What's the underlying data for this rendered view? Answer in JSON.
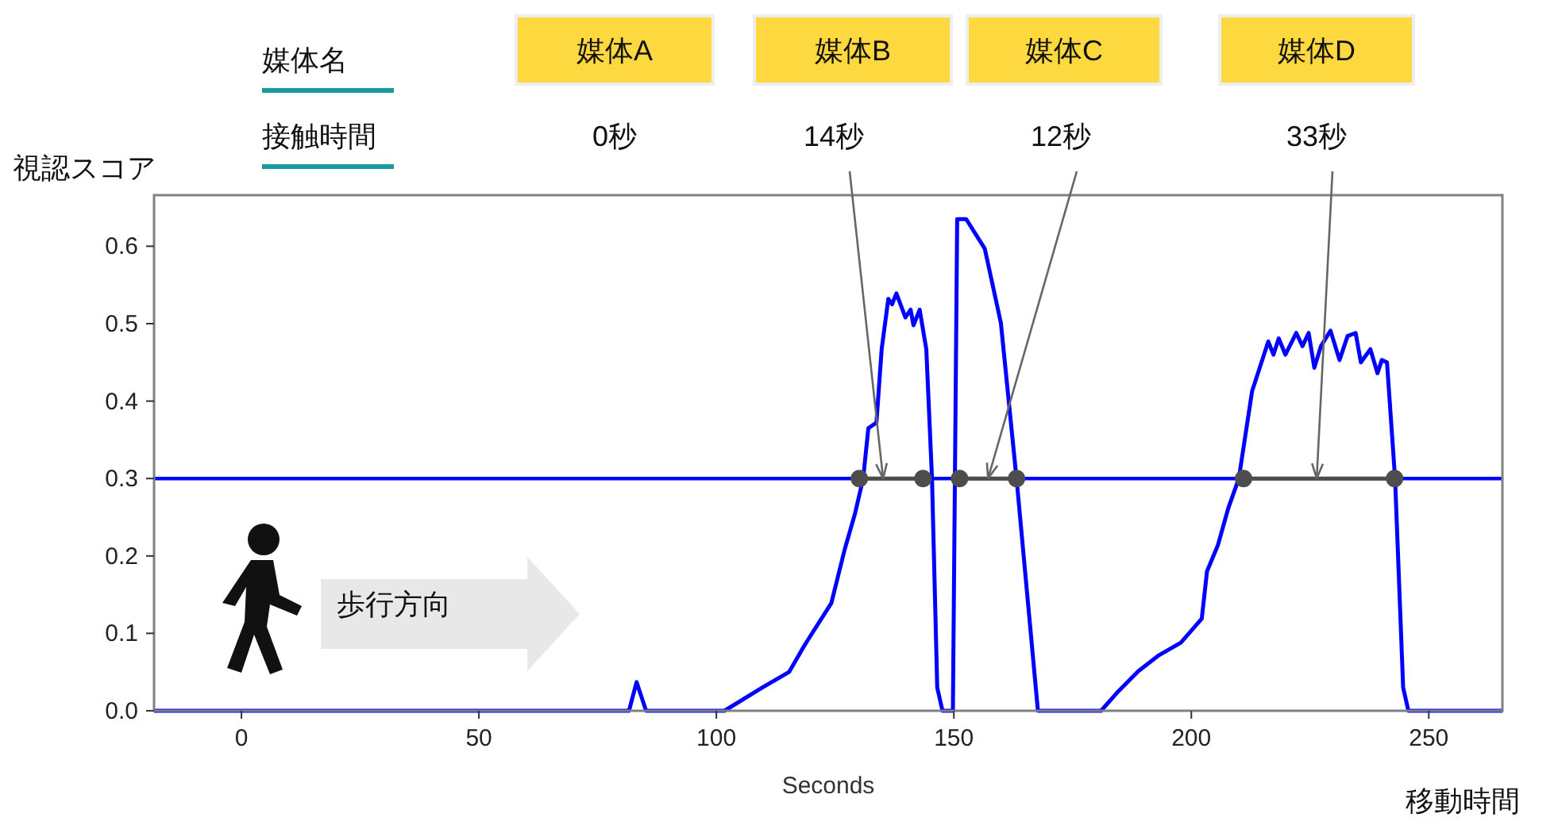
{
  "chart_data": {
    "type": "line",
    "xlabel": "Seconds",
    "ylabel": "視認スコア",
    "xlim": [
      -18.4,
      265.5
    ],
    "ylim": [
      0,
      0.666
    ],
    "xticks": [
      0,
      50,
      100,
      150,
      200,
      250
    ],
    "yticks": [
      {
        "value": 0,
        "label": "0.0"
      },
      {
        "value": 0.1,
        "label": "0.1"
      },
      {
        "value": 0.2,
        "label": "0.2"
      },
      {
        "value": 0.3,
        "label": "0.3"
      },
      {
        "value": 0.4,
        "label": "0.4"
      },
      {
        "value": 0.5,
        "label": "0.5"
      },
      {
        "value": 0.6,
        "label": "0.6"
      }
    ],
    "grid": false,
    "ref_lines": [
      {
        "axis": "y",
        "value": 0.3,
        "color": "#0000ff"
      }
    ],
    "series": [
      {
        "color": "#0000ff",
        "x": [
          -18.4,
          81.6,
          83.2,
          85.2,
          101.7,
          109.7,
          115.3,
          118.6,
          124.2,
          127.0,
          129.2,
          130.9,
          132.0,
          133.7,
          134.8,
          136.2,
          137.0,
          137.9,
          139.8,
          140.9,
          141.5,
          142.8,
          144.2,
          145.4,
          146.5,
          147.6,
          149.8,
          150.7,
          152.6,
          156.5,
          159.9,
          163.2,
          167.7,
          181.0,
          184.3,
          188.8,
          193.0,
          197.8,
          202.2,
          203.3,
          205.6,
          207.8,
          210.0,
          212.8,
          216.2,
          217.3,
          218.4,
          219.8,
          222.1,
          223.4,
          224.7,
          225.9,
          227.3,
          229.3,
          231.2,
          232.9,
          234.6,
          235.7,
          237.7,
          239.2,
          240.1,
          241.2,
          242.9,
          244.6,
          245.7,
          265.5
        ],
        "values": [
          0,
          0,
          0.037,
          0,
          0,
          0.03,
          0.05,
          0.085,
          0.139,
          0.208,
          0.255,
          0.3,
          0.365,
          0.372,
          0.467,
          0.532,
          0.525,
          0.539,
          0.508,
          0.518,
          0.498,
          0.518,
          0.467,
          0.3,
          0.03,
          0,
          0,
          0.635,
          0.635,
          0.597,
          0.501,
          0.3,
          0,
          0,
          0.023,
          0.051,
          0.071,
          0.088,
          0.119,
          0.18,
          0.214,
          0.262,
          0.3,
          0.413,
          0.477,
          0.46,
          0.481,
          0.46,
          0.488,
          0.471,
          0.488,
          0.443,
          0.471,
          0.491,
          0.453,
          0.484,
          0.488,
          0.45,
          0.467,
          0.436,
          0.453,
          0.45,
          0.3,
          0.03,
          0,
          0
        ]
      },
      {
        "color": "#4d4d4d",
        "marker": "circle",
        "x": [
          130.1,
          143.5
        ],
        "values": [
          0.3,
          0.3
        ]
      },
      {
        "color": "#4d4d4d",
        "marker": "circle",
        "x": [
          151.2,
          163.2
        ],
        "values": [
          0.3,
          0.3
        ]
      },
      {
        "color": "#4d4d4d",
        "marker": "circle",
        "x": [
          211.0,
          242.8
        ],
        "values": [
          0.3,
          0.3
        ]
      }
    ],
    "annotations": [
      "媒体名",
      "接触時間",
      "媒体A",
      "媒体B",
      "媒体C",
      "媒体D",
      "0秒",
      "歩行方向",
      "移動時間",
      {
        "text": "14秒",
        "x": 135.1,
        "y": 0.3
      },
      {
        "text": "12秒",
        "x": 157.2,
        "y": 0.3
      },
      {
        "text": "33秒",
        "x": 226.4,
        "y": 0.3
      }
    ]
  }
}
